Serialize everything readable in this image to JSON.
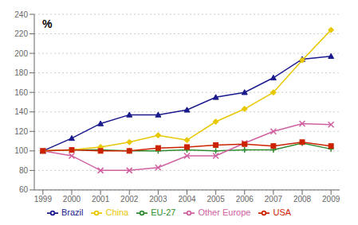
{
  "chart_data": {
    "type": "line",
    "ylabel": "%",
    "x": [
      1999,
      2000,
      2001,
      2002,
      2003,
      2004,
      2005,
      2006,
      2007,
      2008,
      2009
    ],
    "series": [
      {
        "name": "EU-27",
        "color": "#2e8b2e",
        "marker": "plus",
        "values": [
          100,
          101,
          101,
          100,
          100,
          101,
          100,
          101,
          101,
          108,
          102
        ]
      },
      {
        "name": "Other Europe",
        "color": "#d060a0",
        "marker": "x",
        "values": [
          100,
          95,
          80,
          80,
          83,
          95,
          95,
          108,
          120,
          128,
          127
        ]
      },
      {
        "name": "Brazil",
        "color": "#1a1a8c",
        "marker": "triangle",
        "values": [
          100,
          113,
          128,
          137,
          137,
          142,
          155,
          160,
          175,
          194,
          197
        ]
      },
      {
        "name": "China",
        "color": "#e8c800",
        "marker": "diamond",
        "values": [
          100,
          101,
          104,
          109,
          116,
          111,
          130,
          143,
          160,
          193,
          224
        ]
      },
      {
        "name": "USA",
        "color": "#cc2200",
        "marker": "square",
        "values": [
          100,
          101,
          100,
          100,
          103,
          104,
          106,
          107,
          105,
          109,
          105
        ]
      }
    ],
    "xlim": [
      1998.7,
      2009.3
    ],
    "xticks": [
      1999,
      2000,
      2001,
      2002,
      2003,
      2004,
      2005,
      2006,
      2007,
      2008,
      2009
    ],
    "ylim": [
      60,
      240
    ],
    "yticks": [
      60,
      80,
      100,
      120,
      140,
      160,
      180,
      200,
      220,
      240
    ],
    "grid": true
  }
}
